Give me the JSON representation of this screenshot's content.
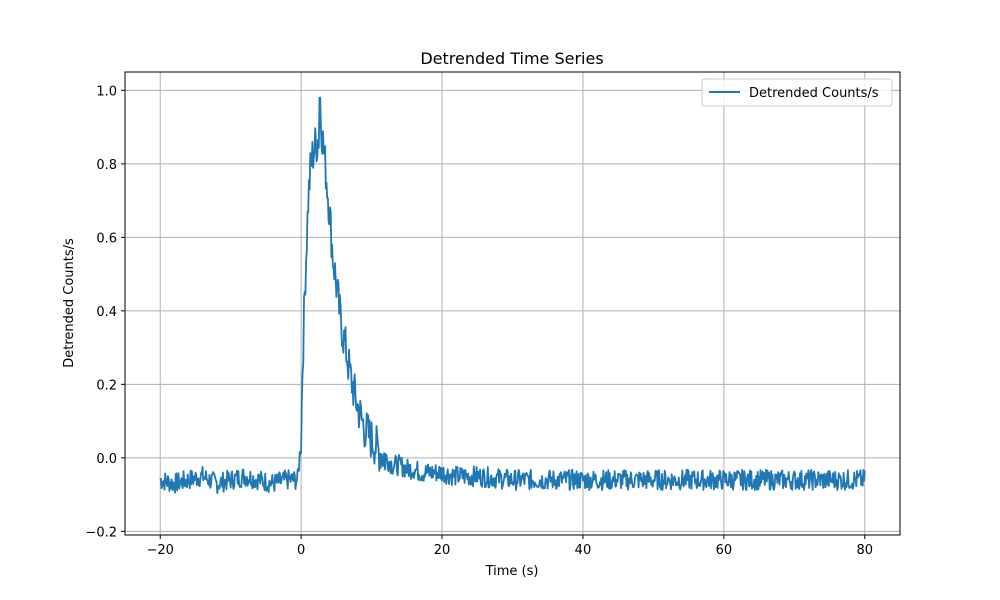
{
  "chart_data": {
    "type": "line",
    "title": "Detrended Time Series",
    "xlabel": "Time (s)",
    "ylabel": "Detrended Counts/s",
    "xlim": [
      -25,
      85
    ],
    "ylim": [
      -0.21,
      1.05
    ],
    "xticks": [
      -20,
      0,
      20,
      40,
      60,
      80
    ],
    "xtick_labels": [
      "−20",
      "0",
      "20",
      "40",
      "60",
      "80"
    ],
    "yticks": [
      -0.2,
      0.0,
      0.2,
      0.4,
      0.6,
      0.8,
      1.0
    ],
    "ytick_labels": [
      "−0.2",
      "0.0",
      "0.2",
      "0.4",
      "0.6",
      "0.8",
      "1.0"
    ],
    "grid": true,
    "legend_position": "top-right",
    "series": [
      {
        "name": "Detrended Counts/s",
        "color": "#1f77b4",
        "x": [
          -20,
          -18,
          -16,
          -14,
          -12,
          -10,
          -8,
          -6,
          -4,
          -2,
          -0.5,
          0,
          0.2,
          0.5,
          0.8,
          1.0,
          1.3,
          1.6,
          2.0,
          2.3,
          2.6,
          2.8,
          3.0,
          3.3,
          3.6,
          4.0,
          4.5,
          5.0,
          5.5,
          6.0,
          6.5,
          7.0,
          7.5,
          8.0,
          8.5,
          9.0,
          10.0,
          11.0,
          12.0,
          13.0,
          14.0,
          15.0,
          16.0,
          17.0,
          18.0,
          19.0,
          20.0,
          22.0,
          25.0,
          30.0,
          35.0,
          40.0,
          45.0,
          50.0,
          55.0,
          60.0,
          65.0,
          70.0,
          75.0,
          80.0
        ],
        "y": [
          -0.06,
          -0.07,
          -0.06,
          -0.05,
          -0.07,
          -0.06,
          -0.05,
          -0.06,
          -0.07,
          -0.06,
          -0.06,
          0.05,
          0.25,
          0.45,
          0.6,
          0.7,
          0.78,
          0.82,
          0.85,
          0.86,
          0.88,
          0.92,
          0.88,
          0.82,
          0.76,
          0.68,
          0.55,
          0.47,
          0.39,
          0.33,
          0.28,
          0.22,
          0.18,
          0.14,
          0.11,
          0.08,
          0.05,
          0.02,
          0.0,
          -0.02,
          -0.02,
          -0.03,
          -0.03,
          -0.04,
          -0.04,
          -0.04,
          -0.04,
          -0.05,
          -0.05,
          -0.06,
          -0.06,
          -0.06,
          -0.06,
          -0.06,
          -0.06,
          -0.06,
          -0.06,
          -0.06,
          -0.06,
          -0.06
        ]
      }
    ]
  }
}
